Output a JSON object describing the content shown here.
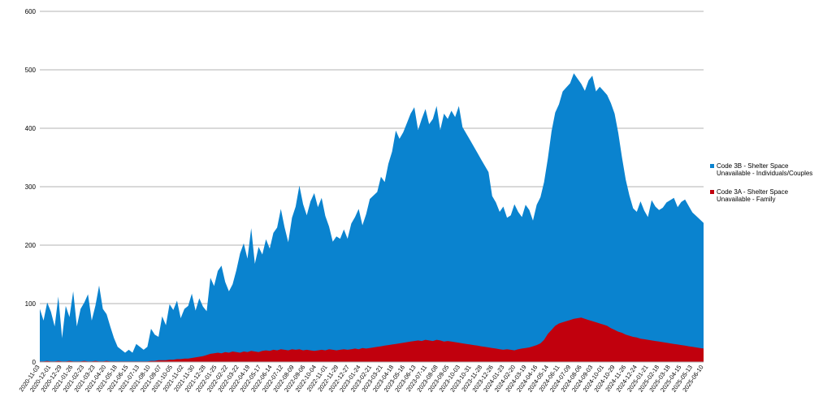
{
  "chart_data": {
    "type": "area",
    "stacked": true,
    "title": "",
    "xlabel": "",
    "ylabel": "",
    "ylim": [
      0,
      600
    ],
    "yticks": [
      0,
      100,
      200,
      300,
      400,
      500,
      600
    ],
    "grid": true,
    "legend_position": "right",
    "x_tick_labels": [
      "2020-11-03",
      "2020-12-01",
      "2020-12-29",
      "2021-01-26",
      "2021-02-23",
      "2021-03-23",
      "2021-04-20",
      "2021-05-18",
      "2021-06-15",
      "2021-07-13",
      "2021-08-10",
      "2021-09-07",
      "2021-10-05",
      "2021-11-02",
      "2021-11-30",
      "2021-12-28",
      "2022-01-25",
      "2022-02-22",
      "2022-03-22",
      "2022-04-19",
      "2022-05-17",
      "2022-06-14",
      "2022-07-12",
      "2022-08-09",
      "2022-09-06",
      "2022-10-04",
      "2022-11-01",
      "2022-11-29",
      "2022-12-27",
      "2023-01-24",
      "2023-02-21",
      "2023-03-21",
      "2023-04-18",
      "2023-05-16",
      "2023-06-13",
      "2023-07-11",
      "2023-08-08",
      "2023-09-05",
      "2023-10-03",
      "2023-10-31",
      "2023-11-28",
      "2023-12-26",
      "2024-01-23",
      "2024-02-20",
      "2024-03-19",
      "2024-04-16",
      "2024-05-14",
      "2024-06-11",
      "2024-07-09",
      "2024-08-06",
      "2024-09-03",
      "2024-10-01",
      "2024-10-29",
      "2024-11-26",
      "2024-12-24",
      "2025-01-21",
      "2025-02-18",
      "2025-03-18",
      "2025-04-15",
      "2025-05-13",
      "2025-06-10"
    ],
    "series": [
      {
        "name": "Code 3B - Shelter Space Unavailable - Individuals/Couples",
        "color": "#0a83cf",
        "values": [
          90,
          70,
          100,
          85,
          60,
          110,
          40,
          95,
          75,
          120,
          60,
          90,
          100,
          115,
          70,
          95,
          130,
          90,
          80,
          60,
          40,
          25,
          20,
          15,
          20,
          15,
          30,
          25,
          20,
          25,
          55,
          45,
          40,
          75,
          60,
          95,
          85,
          100,
          70,
          85,
          90,
          110,
          80,
          100,
          85,
          75,
          130,
          115,
          140,
          150,
          120,
          105,
          115,
          140,
          170,
          185,
          160,
          210,
          150,
          180,
          165,
          190,
          175,
          200,
          210,
          240,
          210,
          185,
          225,
          245,
          280,
          250,
          230,
          255,
          270,
          245,
          260,
          230,
          210,
          185,
          195,
          190,
          205,
          190,
          215,
          225,
          240,
          210,
          230,
          255,
          260,
          265,
          290,
          280,
          310,
          330,
          365,
          350,
          360,
          375,
          390,
          400,
          360,
          380,
          395,
          370,
          380,
          400,
          360,
          390,
          380,
          395,
          385,
          405,
          370,
          360,
          350,
          340,
          330,
          320,
          310,
          300,
          260,
          250,
          235,
          245,
          225,
          230,
          250,
          235,
          225,
          245,
          235,
          215,
          240,
          250,
          270,
          300,
          340,
          365,
          375,
          395,
          400,
          405,
          420,
          410,
          400,
          390,
          410,
          420,
          395,
          405,
          400,
          395,
          385,
          370,
          340,
          300,
          265,
          240,
          220,
          215,
          235,
          220,
          210,
          240,
          230,
          225,
          230,
          240,
          245,
          250,
          235,
          245,
          250,
          240,
          230,
          225,
          220,
          215
        ]
      },
      {
        "name": "Code 3A - Shelter Space Unavailable - Family",
        "color": "#c1000d",
        "values": [
          1,
          1,
          2,
          1,
          1,
          2,
          1,
          1,
          2,
          1,
          1,
          1,
          2,
          1,
          1,
          2,
          1,
          1,
          2,
          1,
          1,
          1,
          1,
          1,
          1,
          1,
          1,
          1,
          1,
          1,
          2,
          2,
          3,
          3,
          3,
          4,
          4,
          5,
          5,
          6,
          6,
          7,
          8,
          9,
          10,
          12,
          14,
          15,
          16,
          15,
          17,
          16,
          18,
          17,
          16,
          18,
          17,
          19,
          18,
          17,
          19,
          20,
          19,
          21,
          20,
          22,
          21,
          20,
          22,
          21,
          22,
          20,
          21,
          20,
          19,
          20,
          21,
          20,
          22,
          21,
          20,
          21,
          22,
          21,
          22,
          23,
          22,
          24,
          23,
          24,
          25,
          26,
          27,
          28,
          29,
          30,
          31,
          32,
          33,
          34,
          35,
          36,
          37,
          36,
          38,
          37,
          36,
          38,
          37,
          35,
          36,
          35,
          34,
          33,
          32,
          31,
          30,
          29,
          28,
          27,
          26,
          25,
          24,
          23,
          22,
          21,
          22,
          21,
          20,
          22,
          23,
          24,
          25,
          27,
          29,
          32,
          38,
          48,
          55,
          62,
          66,
          68,
          70,
          72,
          74,
          75,
          76,
          74,
          72,
          70,
          68,
          66,
          64,
          62,
          58,
          55,
          52,
          50,
          47,
          45,
          43,
          42,
          40,
          39,
          38,
          37,
          36,
          35,
          34,
          33,
          32,
          31,
          30,
          29,
          28,
          27,
          26,
          25,
          24,
          23
        ]
      }
    ]
  }
}
